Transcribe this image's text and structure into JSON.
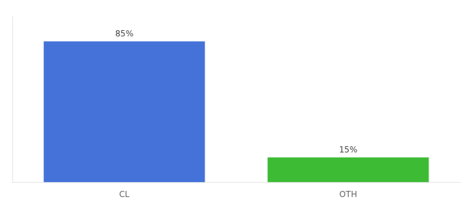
{
  "chart_data": {
    "type": "bar",
    "categories": [
      "CL",
      "OTH"
    ],
    "values": [
      85,
      15
    ],
    "value_labels": [
      "85%",
      "15%"
    ],
    "colors": [
      "#4472d9",
      "#3dbb35"
    ],
    "ylim": [
      0,
      100
    ],
    "grid": false,
    "data_labels": true,
    "tick_labels": "x"
  }
}
